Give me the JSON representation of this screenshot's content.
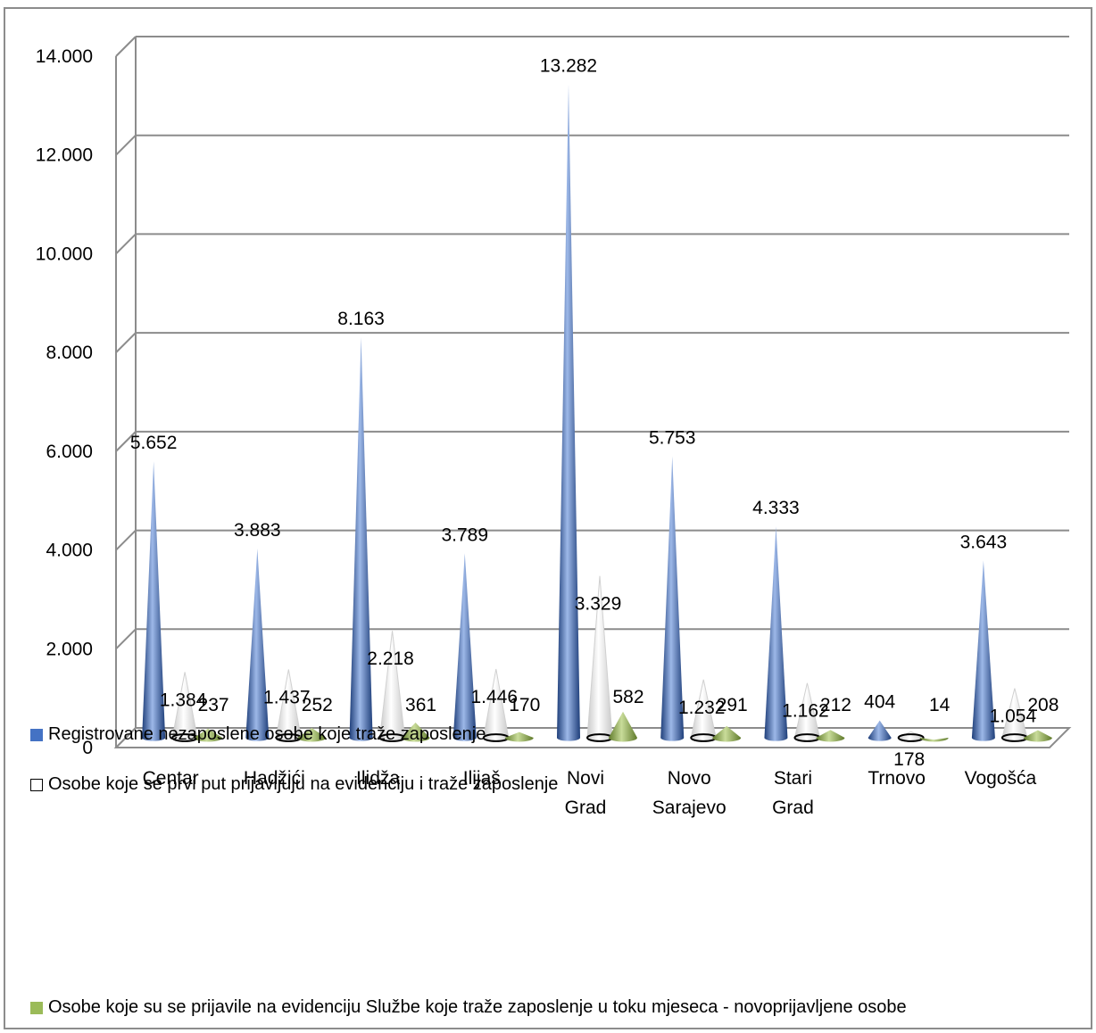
{
  "chart_data": {
    "type": "bar",
    "style": "3d-cone",
    "categories": [
      [
        "Centar"
      ],
      [
        "Hadžići"
      ],
      [
        "Ilidža"
      ],
      [
        "Ilijaš"
      ],
      [
        "Novi",
        "Grad"
      ],
      [
        "Novo",
        "Sarajevo"
      ],
      [
        "Stari",
        "Grad"
      ],
      [
        "Trnovo"
      ],
      [
        "Vogošća"
      ]
    ],
    "series": [
      {
        "name": "Registrovane nezaposlene osobe koje traže zaposlenje",
        "values": [
          5652,
          3883,
          8163,
          3789,
          13282,
          5753,
          4333,
          404,
          3643
        ],
        "labels": [
          "5.652",
          "3.883",
          "8.163",
          "3.789",
          "13.282",
          "5.753",
          "4.333",
          "404",
          "3.643"
        ],
        "color": "#4472c4",
        "color_dark": "#1f3f7a",
        "color_light": "#9db8e8"
      },
      {
        "name": "Osobe koje se prvi put prijavljuju na evidenciju i traže zaposlenje",
        "values": [
          1384,
          1437,
          2218,
          1446,
          3329,
          1232,
          1162,
          178,
          1054
        ],
        "labels": [
          "1.384",
          "1.437",
          "2.218",
          "1.446",
          "3.329",
          "1.232",
          "1.162",
          "178",
          "1.054"
        ],
        "color": "#ffffff",
        "color_dark": "#c8c8c8",
        "color_light": "#ffffff",
        "outline": "#000000"
      },
      {
        "name": "Osobe koje su se prijavile na evidenciju Službe koje traže zaposlenje u toku mjeseca - novoprijavljene osobe",
        "values": [
          237,
          252,
          361,
          170,
          582,
          291,
          212,
          14,
          208
        ],
        "labels": [
          "237",
          "252",
          "361",
          "170",
          "582",
          "291",
          "212",
          "14",
          "208"
        ],
        "color": "#9bbb59",
        "color_dark": "#5f7a2a",
        "color_light": "#c9dc9a"
      }
    ],
    "yticks": [
      "0",
      "2.000",
      "4.000",
      "6.000",
      "8.000",
      "10.000",
      "12.000",
      "14.000"
    ],
    "ylim": [
      0,
      14000
    ],
    "ystep": 2000,
    "grid": true,
    "legend_position": "bottom"
  }
}
